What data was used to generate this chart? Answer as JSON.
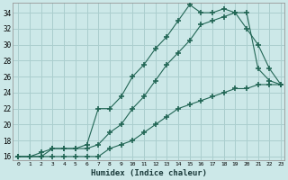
{
  "xlabel": "Humidex (Indice chaleur)",
  "background_color": "#cce8e8",
  "grid_color": "#aacece",
  "line_color": "#226655",
  "xlim": [
    -0.5,
    23.3
  ],
  "ylim": [
    15.5,
    35.2
  ],
  "yticks": [
    16,
    18,
    20,
    22,
    24,
    26,
    28,
    30,
    32,
    34
  ],
  "xticks": [
    0,
    1,
    2,
    3,
    4,
    5,
    6,
    7,
    8,
    9,
    10,
    11,
    12,
    13,
    14,
    15,
    16,
    17,
    18,
    19,
    20,
    21,
    22,
    23
  ],
  "line1_x": [
    0,
    1,
    2,
    3,
    4,
    5,
    6,
    7,
    8,
    9,
    10,
    11,
    12,
    13,
    14,
    15,
    16,
    17,
    18,
    19,
    20,
    21,
    22,
    23
  ],
  "line1_y": [
    16,
    16,
    16,
    16,
    16,
    16,
    16,
    16,
    17,
    17.5,
    18,
    19,
    20,
    21,
    22,
    22.5,
    23,
    23.5,
    24,
    24.5,
    24.5,
    25,
    25,
    25
  ],
  "line2_x": [
    0,
    1,
    2,
    3,
    4,
    5,
    6,
    7,
    8,
    9,
    10,
    11,
    12,
    13,
    14,
    15,
    16,
    17,
    18,
    19,
    20,
    21,
    22,
    23
  ],
  "line2_y": [
    16,
    16,
    16.5,
    17,
    17,
    17,
    17.5,
    22,
    22,
    23.5,
    26,
    27.5,
    29.5,
    31,
    33,
    35,
    34,
    34,
    34.5,
    34,
    32,
    30,
    27,
    25
  ],
  "line3_x": [
    0,
    2,
    3,
    4,
    5,
    6,
    7,
    8,
    9,
    10,
    11,
    12,
    13,
    14,
    15,
    16,
    17,
    18,
    19,
    20,
    21,
    22,
    23
  ],
  "line3_y": [
    16,
    16,
    17,
    17,
    17,
    17,
    17.5,
    19,
    20,
    22,
    23.5,
    25.5,
    27.5,
    29,
    30.5,
    32.5,
    33,
    33.5,
    34,
    34,
    27,
    25.5,
    25
  ]
}
